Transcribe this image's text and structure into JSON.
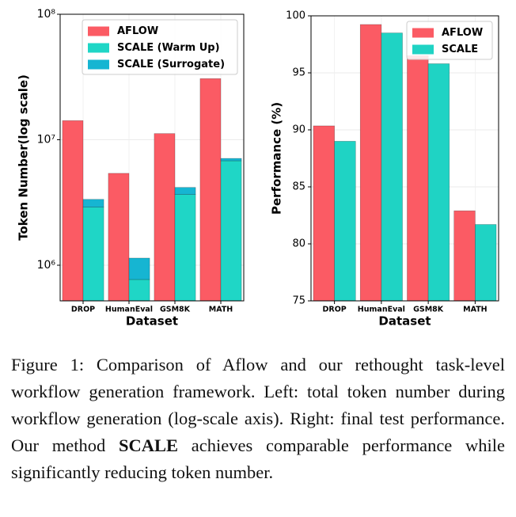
{
  "chart_data": [
    {
      "type": "bar",
      "log_scale": true,
      "grid": true,
      "legend": "upper right",
      "ylabel": "Token Number(log scale)",
      "xlabel": "Dataset",
      "categories": [
        "DROP",
        "HumanEval",
        "GSM8K",
        "MATH"
      ],
      "series": [
        {
          "name": "AFLOW",
          "color": "#fb5b64",
          "values": [
            14200000,
            5400000,
            11200000,
            30700000
          ]
        },
        {
          "name": "SCALE (Warm Up)",
          "color": "#1fd6c6",
          "stack": "SCALE",
          "values": [
            2900000,
            770000,
            3660000,
            6800000
          ]
        },
        {
          "name": "SCALE (Surrogate)",
          "color": "#16b5d2",
          "stack": "SCALE",
          "values": [
            450000,
            370000,
            510000,
            300000
          ]
        }
      ],
      "ylim": [
        520000,
        100000000
      ],
      "yticks": [
        {
          "value": 1000000,
          "label": "10⁶"
        },
        {
          "value": 10000000,
          "label": "10⁷"
        },
        {
          "value": 100000000,
          "label": "10⁸"
        }
      ]
    },
    {
      "type": "bar",
      "grid": true,
      "legend": "upper right",
      "ylabel": "Performance (%)",
      "xlabel": "Dataset",
      "categories": [
        "DROP",
        "HumanEval",
        "GSM8K",
        "MATH"
      ],
      "series": [
        {
          "name": "AFLOW",
          "color": "#fb5b64",
          "values": [
            90.35,
            99.24,
            96.5,
            82.9
          ]
        },
        {
          "name": "SCALE",
          "color": "#1fd3c4",
          "values": [
            89.0,
            98.5,
            95.8,
            81.7
          ]
        }
      ],
      "ylim": [
        75,
        100
      ],
      "yticks": [
        75,
        80,
        85,
        90,
        95,
        100
      ]
    }
  ],
  "caption": {
    "label": "Figure 1:",
    "text": "Comparison of Aflow and our rethought task-level workflow generation framework. Left: total token number during workflow generation (log-scale axis). Right: final test performance.  Our method",
    "bold": "SCALE",
    "text_after": "achieves comparable performance while significantly reducing token number."
  }
}
